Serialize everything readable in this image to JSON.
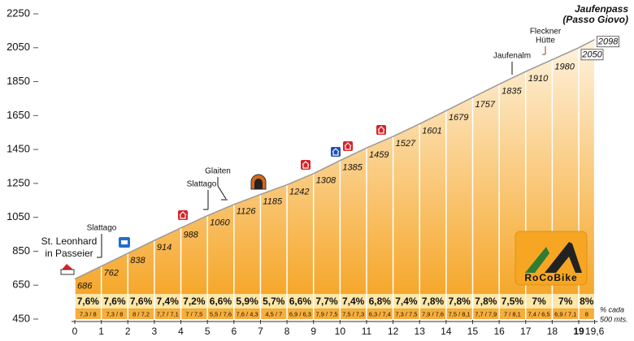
{
  "chart_data": {
    "type": "area",
    "x": [
      0,
      1,
      2,
      3,
      4,
      5,
      6,
      7,
      8,
      9,
      10,
      11,
      12,
      13,
      14,
      15,
      16,
      17,
      18,
      19,
      19.6
    ],
    "values": [
      686,
      762,
      838,
      914,
      988,
      1060,
      1126,
      1185,
      1242,
      1308,
      1385,
      1459,
      1527,
      1601,
      1679,
      1757,
      1835,
      1910,
      1980,
      2050,
      2098
    ],
    "xlim": [
      0,
      19.6
    ],
    "xticks": [
      0,
      1,
      2,
      3,
      4,
      5,
      6,
      7,
      8,
      9,
      10,
      11,
      12,
      13,
      14,
      15,
      16,
      17,
      18,
      19,
      {
        "value": 19.6,
        "label": "19,6"
      }
    ],
    "ylim": [
      450,
      2250
    ],
    "yticks": [
      450,
      650,
      850,
      1050,
      1250,
      1450,
      1650,
      1850,
      2050,
      2250
    ],
    "gradients": {
      "values": [
        7.6,
        7.6,
        7.6,
        7.4,
        7.2,
        6.6,
        5.9,
        5.7,
        6.6,
        7.7,
        7.4,
        6.8,
        7.4,
        7.8,
        7.8,
        7.8,
        7.5,
        7,
        7,
        8
      ],
      "value_labels": [
        "7,6%",
        "7,6%",
        "7,6%",
        "7,4%",
        "7,2%",
        "6,6%",
        "5,9%",
        "5,7%",
        "6,6%",
        "7,7%",
        "7,4%",
        "6,8%",
        "7,4%",
        "7,8%",
        "7,8%",
        "7,8%",
        "7,5%",
        "7%",
        "7%",
        "8%"
      ]
    },
    "half_km_gradients": [
      "7,3 / 8",
      "7,3 / 8",
      "8 / 7,2",
      "7,7 / 7,1",
      "7 / 7,5",
      "5,5 / 7,6",
      "7,6 / 4,3",
      "4,5 / 7",
      "6,9 / 6,3",
      "7,9 / 7,5",
      "7,5 / 7,3",
      "6,3 / 7,4",
      "7,3 / 7,5",
      "7,9 / 7,6",
      "7,5 / 8,1",
      "7,7 / 7,9",
      "7 / 8,1",
      "7,4 / 6,5",
      "6,9 / 7,1",
      "8"
    ],
    "gradient_note": [
      "% cada",
      "500 mts."
    ],
    "annotations": [
      [
        "Jaufenpass",
        "(Passo Giovo)"
      ],
      [
        "Fleckner",
        "Hütte"
      ],
      [
        "Jaufenalm"
      ],
      [
        "Glaiten"
      ],
      [
        "Slattago"
      ],
      [
        "Slattago"
      ],
      [
        "St. Leonhard",
        "in Passeier"
      ]
    ],
    "logo": "RoCoBike",
    "colors": {
      "fill_top": "#fffaf0",
      "fill_bottom": "#f5a01a",
      "line": "#9a9a9a",
      "row": "#fde6a6",
      "half_row": "#f6ae3c"
    }
  }
}
